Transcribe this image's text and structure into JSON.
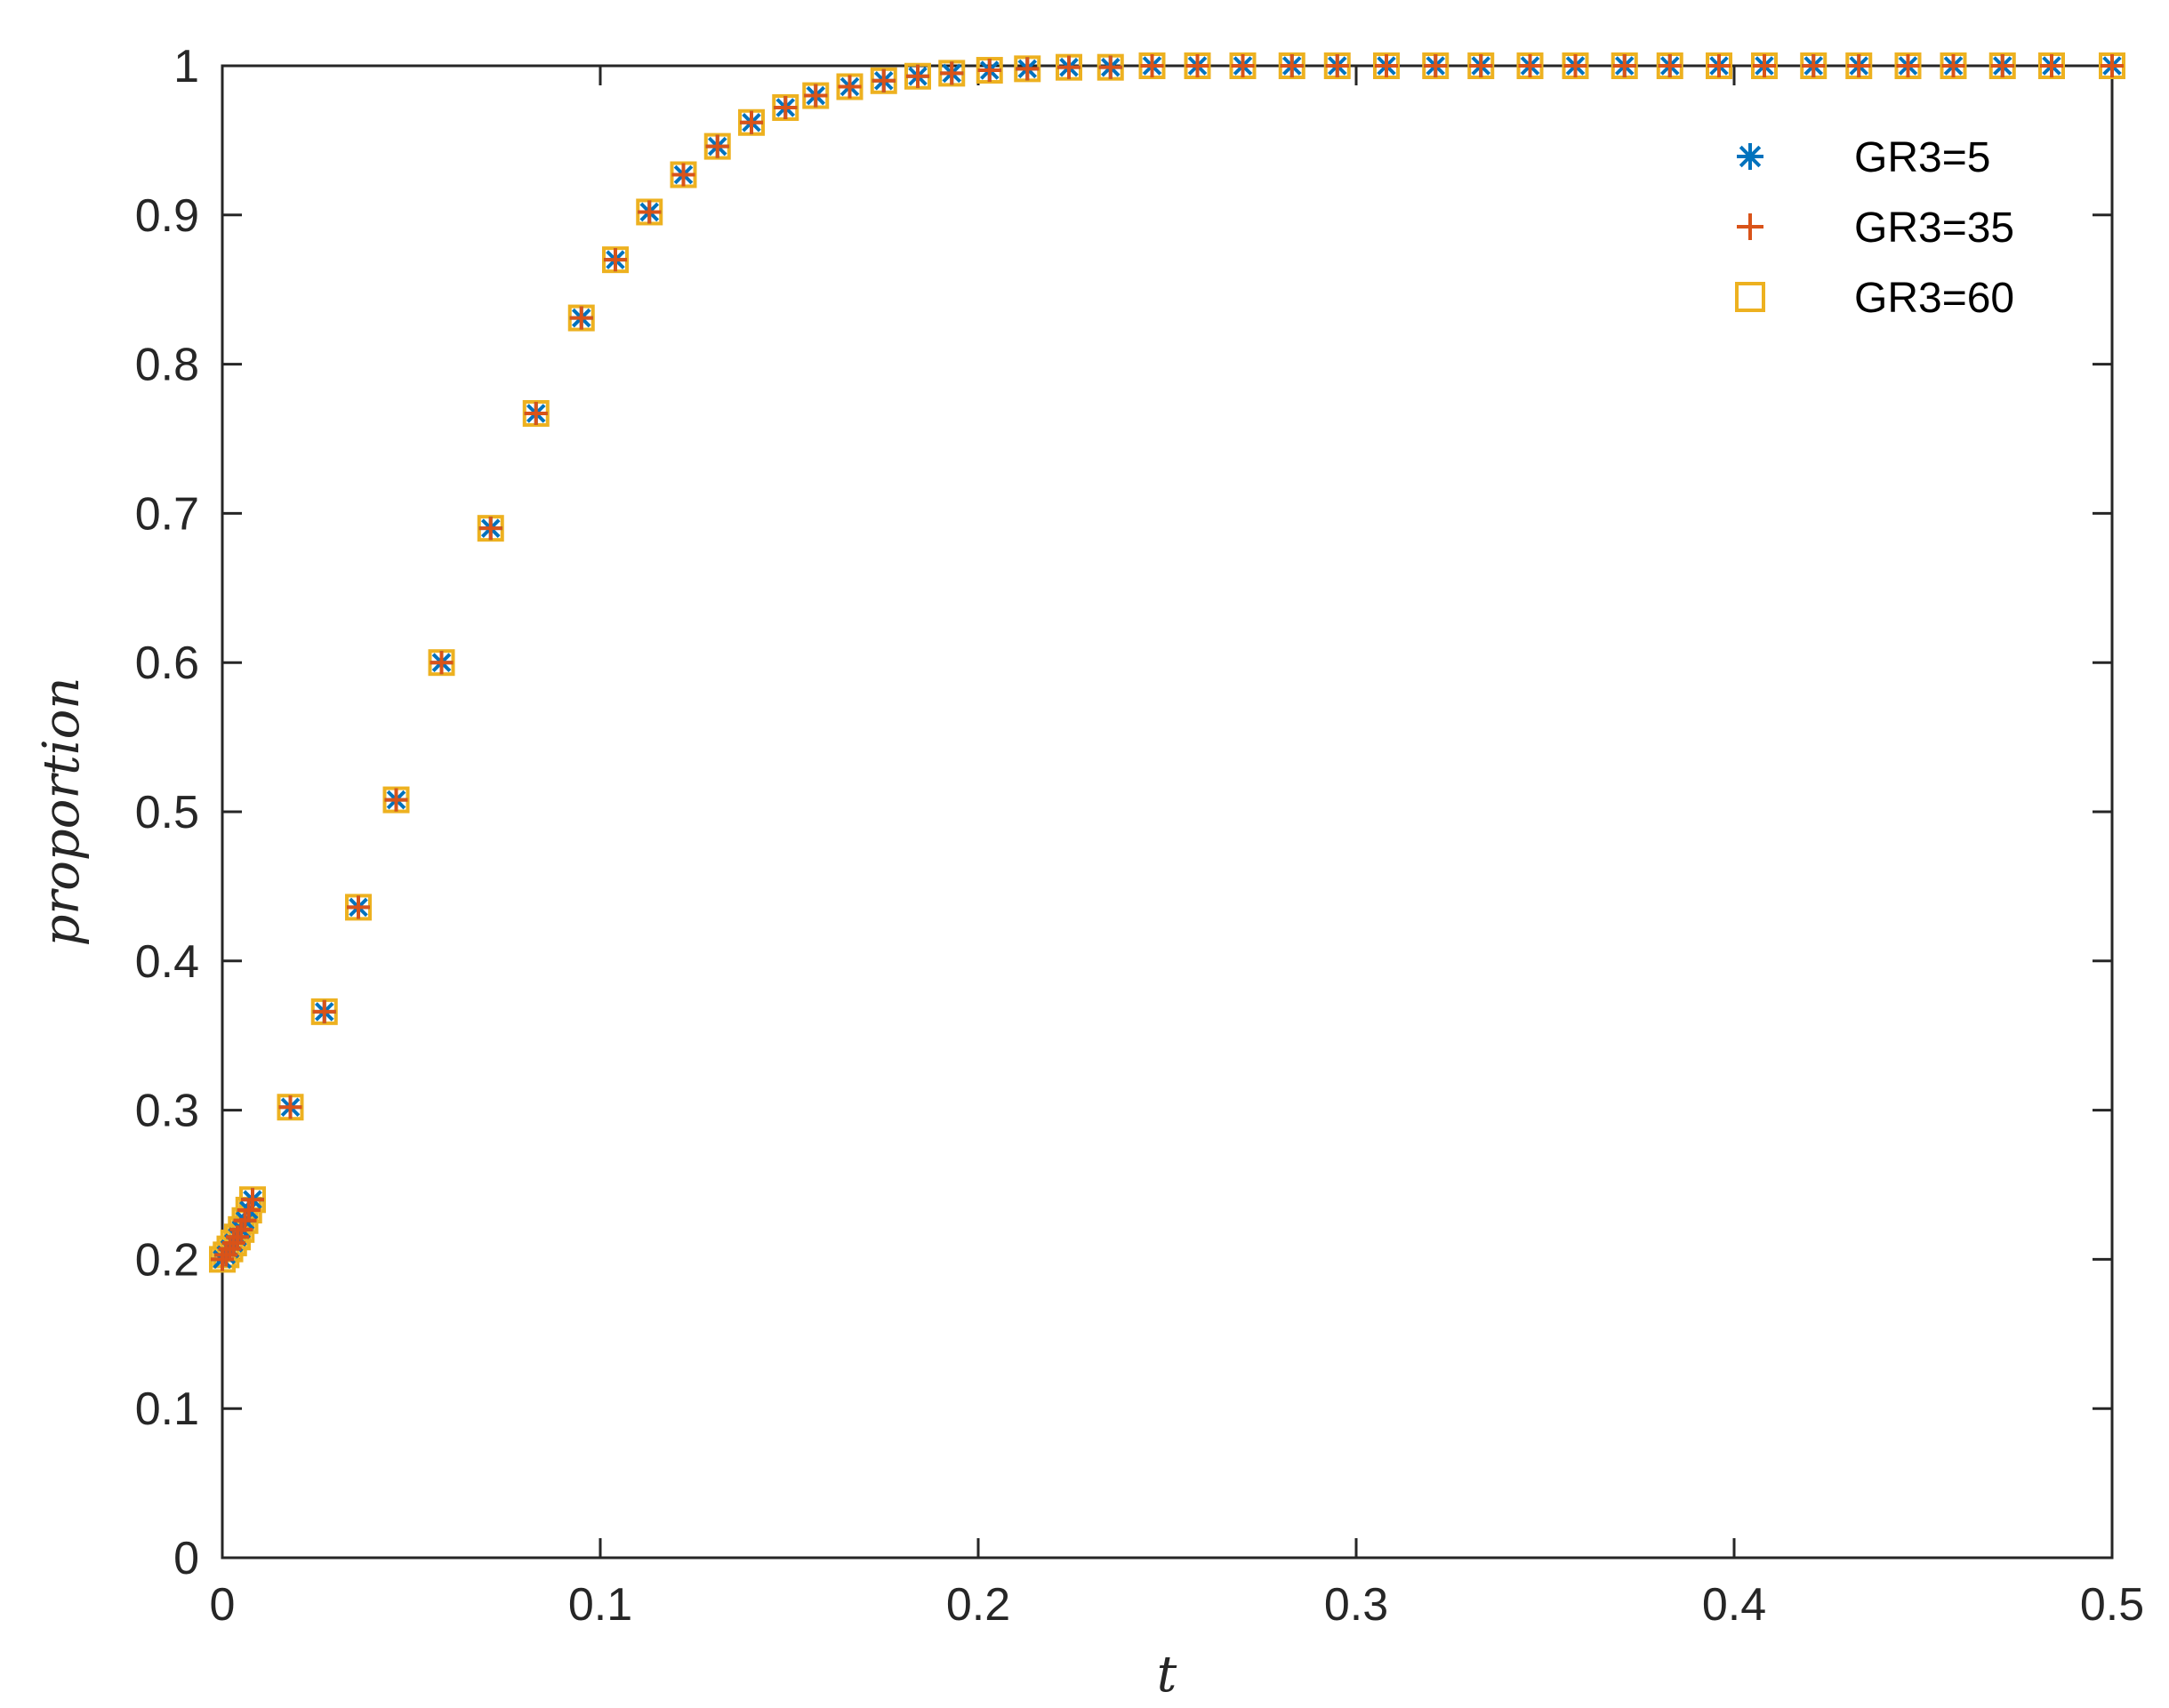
{
  "chart_data": {
    "type": "scatter",
    "title": "",
    "xlabel": "t",
    "ylabel": "proportion",
    "xlim": [
      0,
      0.5
    ],
    "ylim": [
      0,
      1
    ],
    "xticks": [
      0,
      0.1,
      0.2,
      0.3,
      0.4,
      0.5
    ],
    "xtick_labels": [
      "0",
      "0.1",
      "0.2",
      "0.3",
      "0.4",
      "0.5"
    ],
    "yticks": [
      0,
      0.1,
      0.2,
      0.3,
      0.4,
      0.5,
      0.6,
      0.7,
      0.8,
      0.9,
      1
    ],
    "ytick_labels": [
      "0",
      "0.1",
      "0.2",
      "0.3",
      "0.4",
      "0.5",
      "0.6",
      "0.7",
      "0.8",
      "0.9",
      "1"
    ],
    "grid": false,
    "legend_position": "top-right",
    "x": [
      0,
      0.001,
      0.002,
      0.003,
      0.004,
      0.005,
      0.006,
      0.007,
      0.008,
      0.018,
      0.027,
      0.036,
      0.046,
      0.058,
      0.071,
      0.083,
      0.095,
      0.104,
      0.113,
      0.122,
      0.131,
      0.14,
      0.149,
      0.157,
      0.166,
      0.175,
      0.184,
      0.193,
      0.203,
      0.213,
      0.224,
      0.235,
      0.246,
      0.258,
      0.27,
      0.283,
      0.295,
      0.308,
      0.321,
      0.333,
      0.346,
      0.358,
      0.371,
      0.383,
      0.396,
      0.408,
      0.421,
      0.433,
      0.446,
      0.458,
      0.471,
      0.484,
      0.5
    ],
    "series": [
      {
        "name": "GR3=5",
        "marker": "asterisk",
        "color": "#0072BD",
        "values": [
          0.2,
          0.203,
          0.207,
          0.211,
          0.215,
          0.22,
          0.226,
          0.233,
          0.24,
          0.302,
          0.366,
          0.436,
          0.508,
          0.6,
          0.69,
          0.767,
          0.831,
          0.87,
          0.902,
          0.927,
          0.946,
          0.962,
          0.972,
          0.98,
          0.986,
          0.99,
          0.993,
          0.995,
          0.997,
          0.998,
          0.999,
          0.999,
          1.0,
          1.0,
          1.0,
          1.0,
          1.0,
          1.0,
          1.0,
          1.0,
          1.0,
          1.0,
          1.0,
          1.0,
          1.0,
          1.0,
          1.0,
          1.0,
          1.0,
          1.0,
          1.0,
          1.0,
          1.0
        ]
      },
      {
        "name": "GR3=35",
        "marker": "plus",
        "color": "#D95319",
        "values": [
          0.2,
          0.203,
          0.207,
          0.211,
          0.215,
          0.22,
          0.226,
          0.233,
          0.24,
          0.302,
          0.366,
          0.436,
          0.508,
          0.6,
          0.69,
          0.767,
          0.831,
          0.87,
          0.902,
          0.927,
          0.946,
          0.962,
          0.972,
          0.98,
          0.986,
          0.99,
          0.993,
          0.995,
          0.997,
          0.998,
          0.999,
          0.999,
          1.0,
          1.0,
          1.0,
          1.0,
          1.0,
          1.0,
          1.0,
          1.0,
          1.0,
          1.0,
          1.0,
          1.0,
          1.0,
          1.0,
          1.0,
          1.0,
          1.0,
          1.0,
          1.0,
          1.0,
          1.0
        ]
      },
      {
        "name": "GR3=60",
        "marker": "square",
        "color": "#EDB120",
        "values": [
          0.2,
          0.203,
          0.207,
          0.211,
          0.215,
          0.22,
          0.226,
          0.233,
          0.24,
          0.302,
          0.366,
          0.436,
          0.508,
          0.6,
          0.69,
          0.767,
          0.831,
          0.87,
          0.902,
          0.927,
          0.946,
          0.962,
          0.972,
          0.98,
          0.986,
          0.99,
          0.993,
          0.995,
          0.997,
          0.998,
          0.999,
          0.999,
          1.0,
          1.0,
          1.0,
          1.0,
          1.0,
          1.0,
          1.0,
          1.0,
          1.0,
          1.0,
          1.0,
          1.0,
          1.0,
          1.0,
          1.0,
          1.0,
          1.0,
          1.0,
          1.0,
          1.0,
          1.0
        ]
      }
    ]
  }
}
